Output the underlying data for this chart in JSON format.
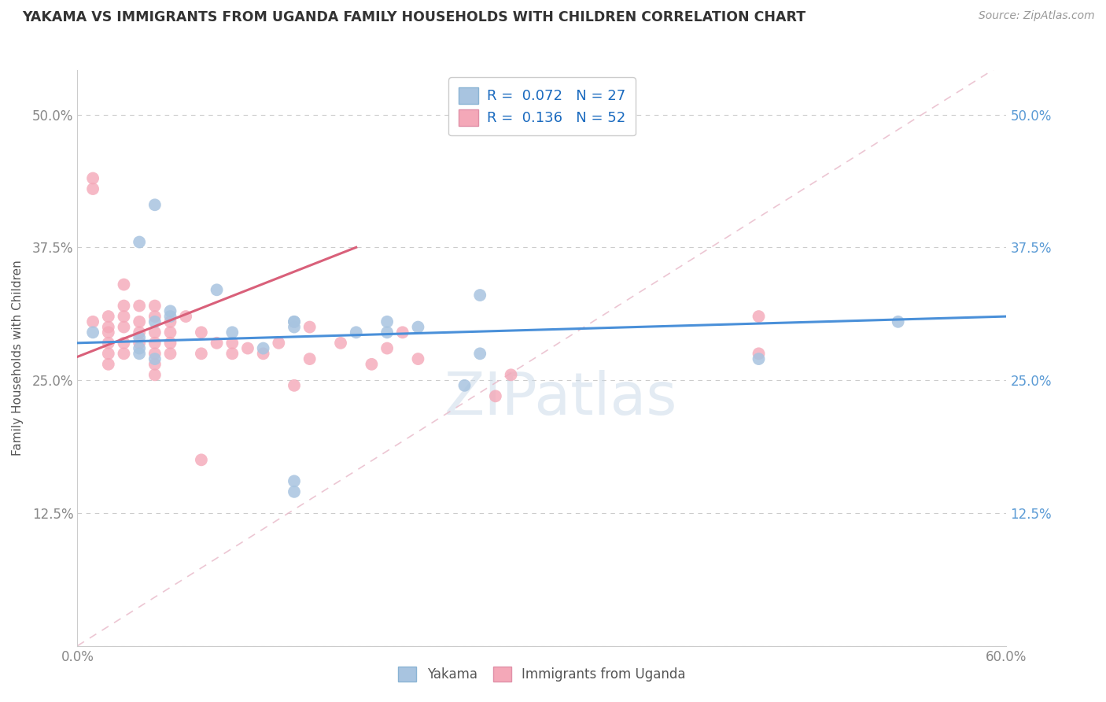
{
  "title": "YAKAMA VS IMMIGRANTS FROM UGANDA FAMILY HOUSEHOLDS WITH CHILDREN CORRELATION CHART",
  "source": "Source: ZipAtlas.com",
  "ylabel": "Family Households with Children",
  "watermark": "ZIPatlas",
  "xmin": 0.0,
  "xmax": 0.6,
  "ymin": 0.0,
  "ymax": 0.5417,
  "yticks": [
    0.0,
    0.125,
    0.25,
    0.375,
    0.5
  ],
  "ytick_labels": [
    "",
    "12.5%",
    "25.0%",
    "37.5%",
    "50.0%"
  ],
  "xticks": [
    0.0,
    0.1,
    0.2,
    0.3,
    0.4,
    0.5,
    0.6
  ],
  "xtick_labels": [
    "0.0%",
    "",
    "",
    "",
    "",
    "",
    "60.0%"
  ],
  "legend_labels": [
    "Yakama",
    "Immigrants from Uganda"
  ],
  "R_yakama": 0.072,
  "N_yakama": 27,
  "R_uganda": 0.136,
  "N_uganda": 52,
  "color_yakama": "#a8c4e0",
  "color_uganda": "#f4a8b8",
  "line_color_yakama": "#4a90d9",
  "line_color_uganda": "#d9607a",
  "trendline_color_dashed": "#e8b8c8",
  "yakama_x": [
    0.01,
    0.04,
    0.05,
    0.04,
    0.04,
    0.05,
    0.06,
    0.04,
    0.05,
    0.06,
    0.09,
    0.1,
    0.12,
    0.14,
    0.18,
    0.22,
    0.25,
    0.26,
    0.26,
    0.2,
    0.2,
    0.44,
    0.53,
    0.14,
    0.14,
    0.14,
    0.14
  ],
  "yakama_y": [
    0.295,
    0.38,
    0.415,
    0.29,
    0.28,
    0.305,
    0.315,
    0.275,
    0.27,
    0.31,
    0.335,
    0.295,
    0.28,
    0.3,
    0.295,
    0.3,
    0.245,
    0.275,
    0.33,
    0.295,
    0.305,
    0.27,
    0.305,
    0.155,
    0.145,
    0.305,
    0.305
  ],
  "uganda_x": [
    0.01,
    0.01,
    0.01,
    0.02,
    0.02,
    0.02,
    0.02,
    0.02,
    0.02,
    0.03,
    0.03,
    0.03,
    0.03,
    0.03,
    0.03,
    0.04,
    0.04,
    0.04,
    0.04,
    0.05,
    0.05,
    0.05,
    0.05,
    0.05,
    0.05,
    0.05,
    0.06,
    0.06,
    0.06,
    0.06,
    0.07,
    0.08,
    0.08,
    0.09,
    0.1,
    0.11,
    0.12,
    0.13,
    0.14,
    0.15,
    0.17,
    0.19,
    0.21,
    0.27,
    0.28,
    0.44,
    0.44,
    0.1,
    0.15,
    0.2,
    0.22,
    0.08
  ],
  "uganda_y": [
    0.44,
    0.43,
    0.305,
    0.31,
    0.3,
    0.295,
    0.285,
    0.275,
    0.265,
    0.34,
    0.32,
    0.31,
    0.3,
    0.285,
    0.275,
    0.32,
    0.305,
    0.295,
    0.285,
    0.32,
    0.31,
    0.295,
    0.285,
    0.275,
    0.265,
    0.255,
    0.305,
    0.295,
    0.285,
    0.275,
    0.31,
    0.295,
    0.275,
    0.285,
    0.275,
    0.28,
    0.275,
    0.285,
    0.245,
    0.3,
    0.285,
    0.265,
    0.295,
    0.235,
    0.255,
    0.31,
    0.275,
    0.285,
    0.27,
    0.28,
    0.27,
    0.175
  ]
}
